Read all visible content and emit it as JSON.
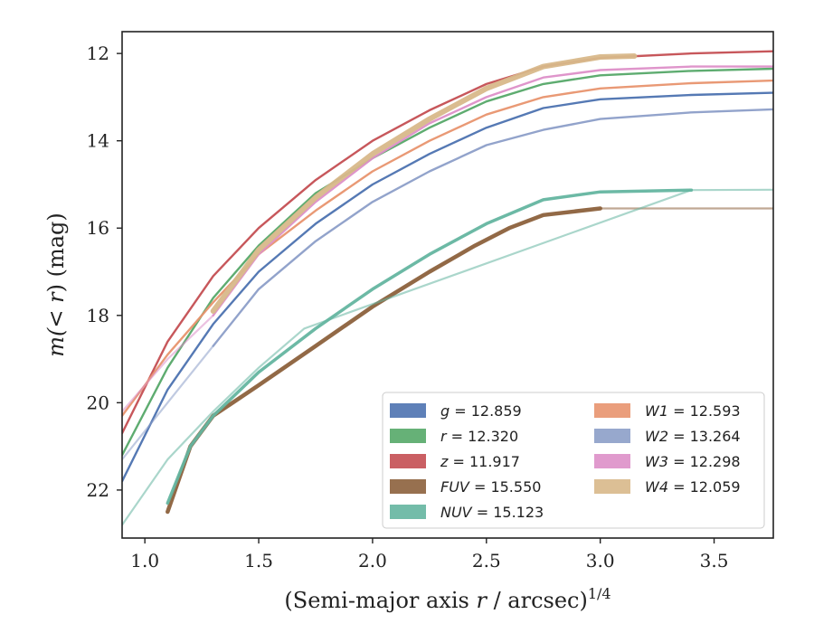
{
  "chart_data": {
    "type": "line",
    "title": "",
    "xlabel": "(Semi-major axis r / arcsec)",
    "xlabel_var": "r",
    "xlabel_pre": "(Semi-major axis ",
    "xlabel_post": " / arcsec)",
    "xlabel_sup": "1/4",
    "ylabel": "m(< r) (mag)",
    "ylabel_pre": "m(",
    "ylabel_lt": "< r",
    "ylabel_post": ") (mag)",
    "xlim": [
      0.9,
      3.76
    ],
    "ylim": [
      23.1,
      11.5
    ],
    "y_inverted": true,
    "grid": false,
    "legend_position": "lower-right",
    "xticks": [
      "1.0",
      "1.5",
      "2.0",
      "2.5",
      "3.0",
      "3.5"
    ],
    "xtick_values": [
      1.0,
      1.5,
      2.0,
      2.5,
      3.0,
      3.5
    ],
    "yticks": [
      "12",
      "14",
      "16",
      "18",
      "20",
      "22"
    ],
    "ytick_values": [
      12,
      14,
      16,
      18,
      20,
      22
    ],
    "series": [
      {
        "name": "g",
        "label_value": "12.859",
        "color": "#4c72b0",
        "points": [
          [
            0.9,
            21.8
          ],
          [
            1.1,
            19.7
          ],
          [
            1.3,
            18.2
          ],
          [
            1.5,
            17.0
          ],
          [
            1.75,
            15.9
          ],
          [
            2.0,
            15.0
          ],
          [
            2.25,
            14.3
          ],
          [
            2.5,
            13.7
          ],
          [
            2.75,
            13.25
          ],
          [
            3.0,
            13.05
          ],
          [
            3.4,
            12.95
          ],
          [
            3.76,
            12.9
          ]
        ],
        "faded_points": []
      },
      {
        "name": "r",
        "label_value": "12.320",
        "color": "#55a868",
        "points": [
          [
            0.9,
            21.2
          ],
          [
            1.1,
            19.2
          ],
          [
            1.3,
            17.6
          ],
          [
            1.5,
            16.4
          ],
          [
            1.75,
            15.2
          ],
          [
            2.0,
            14.4
          ],
          [
            2.25,
            13.7
          ],
          [
            2.5,
            13.1
          ],
          [
            2.75,
            12.7
          ],
          [
            3.0,
            12.5
          ],
          [
            3.4,
            12.4
          ],
          [
            3.76,
            12.35
          ]
        ],
        "faded_points": []
      },
      {
        "name": "z",
        "label_value": "11.917",
        "color": "#c44e52",
        "points": [
          [
            0.9,
            20.7
          ],
          [
            1.1,
            18.6
          ],
          [
            1.3,
            17.1
          ],
          [
            1.5,
            16.0
          ],
          [
            1.75,
            14.9
          ],
          [
            2.0,
            14.0
          ],
          [
            2.25,
            13.3
          ],
          [
            2.5,
            12.7
          ],
          [
            2.75,
            12.3
          ],
          [
            3.0,
            12.1
          ],
          [
            3.4,
            12.0
          ],
          [
            3.76,
            11.95
          ]
        ],
        "faded_points": []
      },
      {
        "name": "FUV",
        "label_value": "15.550",
        "color": "#8c613c",
        "points": [
          [
            1.1,
            22.5
          ],
          [
            1.2,
            21.0
          ],
          [
            1.3,
            20.3
          ],
          [
            1.5,
            19.6
          ],
          [
            1.75,
            18.7
          ],
          [
            2.0,
            17.8
          ],
          [
            2.25,
            17.0
          ],
          [
            2.45,
            16.4
          ],
          [
            2.6,
            16.0
          ],
          [
            2.75,
            15.7
          ],
          [
            3.0,
            15.55
          ]
        ],
        "faded_points": [
          [
            3.0,
            15.55
          ],
          [
            3.76,
            15.55
          ]
        ]
      },
      {
        "name": "NUV",
        "label_value": "15.123",
        "color": "#64b5a0",
        "points": [
          [
            1.1,
            22.3
          ],
          [
            1.2,
            21.0
          ],
          [
            1.3,
            20.3
          ],
          [
            1.5,
            19.3
          ],
          [
            1.75,
            18.3
          ],
          [
            2.0,
            17.4
          ],
          [
            2.25,
            16.6
          ],
          [
            2.5,
            15.9
          ],
          [
            2.75,
            15.35
          ],
          [
            3.0,
            15.17
          ],
          [
            3.4,
            15.13
          ]
        ],
        "faded_points": [
          [
            0.9,
            22.8
          ],
          [
            1.1,
            21.3
          ],
          [
            1.3,
            20.2
          ],
          [
            1.5,
            19.2
          ],
          [
            1.7,
            18.3
          ],
          [
            3.4,
            15.13
          ],
          [
            3.76,
            15.12
          ]
        ]
      },
      {
        "name": "W1",
        "label_value": "12.593",
        "color": "#e8936e",
        "points": [
          [
            0.9,
            20.3
          ],
          [
            1.1,
            18.9
          ],
          [
            1.3,
            17.7
          ],
          [
            1.5,
            16.6
          ],
          [
            1.75,
            15.6
          ],
          [
            2.0,
            14.7
          ],
          [
            2.25,
            14.0
          ],
          [
            2.5,
            13.4
          ],
          [
            2.75,
            13.0
          ],
          [
            3.0,
            12.8
          ],
          [
            3.4,
            12.68
          ],
          [
            3.76,
            12.62
          ]
        ],
        "faded_points": []
      },
      {
        "name": "W2",
        "label_value": "13.264",
        "color": "#8c9ec8",
        "points": [
          [
            1.3,
            18.7
          ],
          [
            1.5,
            17.4
          ],
          [
            1.75,
            16.3
          ],
          [
            2.0,
            15.4
          ],
          [
            2.25,
            14.7
          ],
          [
            2.5,
            14.1
          ],
          [
            2.75,
            13.75
          ],
          [
            3.0,
            13.5
          ],
          [
            3.4,
            13.35
          ],
          [
            3.76,
            13.28
          ]
        ],
        "faded_points": [
          [
            0.9,
            21.3
          ],
          [
            1.1,
            20.0
          ],
          [
            1.3,
            18.7
          ]
        ]
      },
      {
        "name": "W3",
        "label_value": "12.298",
        "color": "#dd8fc8",
        "points": [
          [
            1.3,
            18.0
          ],
          [
            1.5,
            16.6
          ],
          [
            1.75,
            15.4
          ],
          [
            2.0,
            14.4
          ],
          [
            2.25,
            13.6
          ],
          [
            2.5,
            13.0
          ],
          [
            2.75,
            12.55
          ],
          [
            3.0,
            12.38
          ],
          [
            3.4,
            12.3
          ],
          [
            3.76,
            12.3
          ]
        ],
        "faded_points": [
          [
            0.9,
            20.2
          ],
          [
            1.1,
            19.0
          ],
          [
            1.3,
            18.0
          ]
        ]
      },
      {
        "name": "W4",
        "label_value": "12.059",
        "color": "#d8b88a",
        "points": [
          [
            1.3,
            17.9
          ],
          [
            1.5,
            16.5
          ],
          [
            1.75,
            15.3
          ],
          [
            2.0,
            14.3
          ],
          [
            2.25,
            13.5
          ],
          [
            2.5,
            12.8
          ],
          [
            2.75,
            12.3
          ],
          [
            3.0,
            12.08
          ],
          [
            3.15,
            12.06
          ]
        ],
        "faded_points": []
      }
    ]
  }
}
